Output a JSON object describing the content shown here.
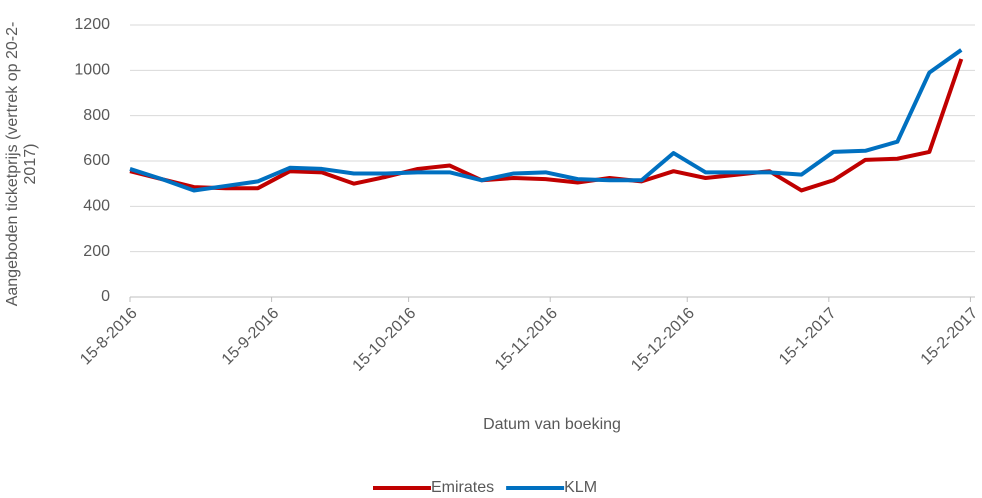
{
  "chart_data": {
    "type": "line",
    "x_label": "Datum van boeking",
    "y_label": "Aangeboden ticketprijs (vertrek op 20-2-2017)",
    "x": [
      "2016-08-15",
      "2016-08-22",
      "2016-08-29",
      "2016-09-05",
      "2016-09-12",
      "2016-09-19",
      "2016-09-26",
      "2016-10-03",
      "2016-10-10",
      "2016-10-17",
      "2016-10-24",
      "2016-10-31",
      "2016-11-07",
      "2016-11-14",
      "2016-11-21",
      "2016-11-28",
      "2016-12-05",
      "2016-12-12",
      "2016-12-19",
      "2016-12-26",
      "2017-01-02",
      "2017-01-09",
      "2017-01-16",
      "2017-01-23",
      "2017-01-30",
      "2017-02-06",
      "2017-02-13"
    ],
    "series": [
      {
        "name": "Emirates",
        "color": "#c00000",
        "values": [
          555,
          520,
          485,
          480,
          480,
          555,
          550,
          500,
          530,
          565,
          580,
          515,
          525,
          520,
          505,
          525,
          510,
          555,
          525,
          540,
          555,
          470,
          515,
          605,
          610,
          640,
          1050
        ]
      },
      {
        "name": "KLM",
        "color": "#0070c0",
        "values": [
          565,
          520,
          470,
          490,
          510,
          570,
          565,
          545,
          545,
          550,
          550,
          515,
          545,
          550,
          520,
          515,
          515,
          635,
          550,
          550,
          550,
          540,
          640,
          645,
          685,
          990,
          1090
        ]
      }
    ],
    "xlim": [
      "2016-08-15",
      "2017-02-16"
    ],
    "xticks": [
      {
        "value": "2016-08-15",
        "label": "15-8-2016"
      },
      {
        "value": "2016-09-15",
        "label": "15-9-2016"
      },
      {
        "value": "2016-10-15",
        "label": "15-10-2016"
      },
      {
        "value": "2016-11-15",
        "label": "15-11-2016"
      },
      {
        "value": "2016-12-15",
        "label": "15-12-2016"
      },
      {
        "value": "2017-01-15",
        "label": "15-1-2017"
      },
      {
        "value": "2017-02-15",
        "label": "15-2-2017"
      }
    ],
    "ylim": [
      0,
      1200
    ],
    "yticks": [
      0,
      200,
      400,
      600,
      800,
      1000,
      1200
    ],
    "grid": true,
    "legend": "bottom"
  }
}
